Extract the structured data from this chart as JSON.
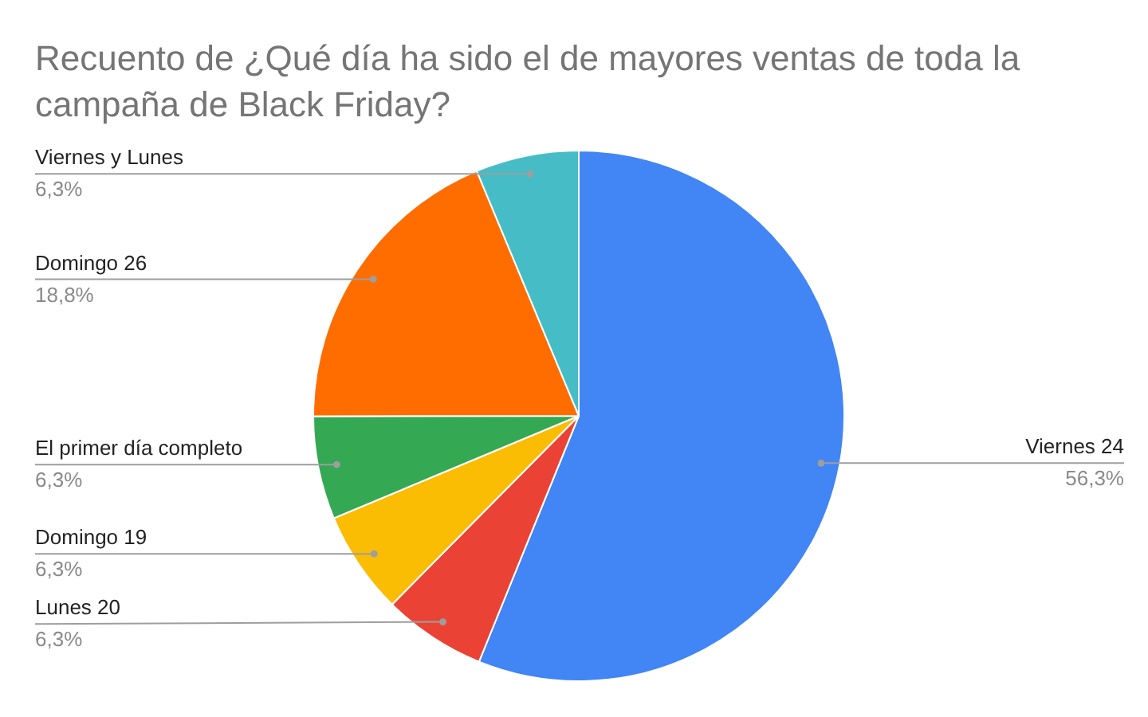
{
  "chart_data": {
    "type": "pie",
    "title": "Recuento de ¿Qué día ha sido el de mayores ventas de toda la campaña de Black Friday?",
    "categories": [
      "Viernes 24",
      "Lunes 20",
      "Domingo 19",
      "El primer día completo",
      "Domingo 26",
      "Viernes y Lunes"
    ],
    "values": [
      56.3,
      6.3,
      6.3,
      6.3,
      18.8,
      6.3
    ],
    "value_labels": [
      "56,3%",
      "6,3%",
      "6,3%",
      "6,3%",
      "18,8%",
      "6,3%"
    ],
    "colors": [
      "#4285f4",
      "#ea4335",
      "#fbbc04",
      "#34a853",
      "#ff6d01",
      "#46bdc6"
    ],
    "legend": false
  }
}
